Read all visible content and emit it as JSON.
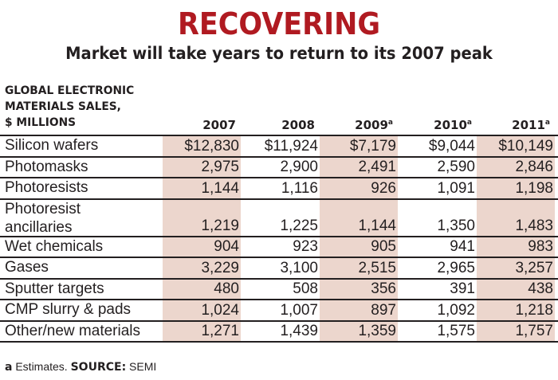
{
  "title": "RECOVERING",
  "subtitle": "Market will take years to return to its 2007 peak",
  "chart_data": {
    "type": "table",
    "row_header_label": [
      "GLOBAL ELECTRONIC",
      "MATERIALS SALES,",
      "$ MILLIONS"
    ],
    "columns": [
      {
        "year": "2007",
        "note": ""
      },
      {
        "year": "2008",
        "note": ""
      },
      {
        "year": "2009",
        "note": "a"
      },
      {
        "year": "2010",
        "note": "a"
      },
      {
        "year": "2011",
        "note": "a"
      }
    ],
    "rows": [
      {
        "label": [
          "Silicon wafers"
        ],
        "values": [
          "$12,830",
          "$11,924",
          "$7,179",
          "$9,044",
          "$10,149"
        ]
      },
      {
        "label": [
          "Photomasks"
        ],
        "values": [
          "2,975",
          "2,900",
          "2,491",
          "2,590",
          "2,846"
        ]
      },
      {
        "label": [
          "Photoresists"
        ],
        "values": [
          "1,144",
          "1,116",
          "926",
          "1,091",
          "1,198"
        ]
      },
      {
        "label": [
          "Photoresist",
          "ancillaries"
        ],
        "values": [
          "1,219",
          "1,225",
          "1,144",
          "1,350",
          "1,483"
        ]
      },
      {
        "label": [
          "Wet chemicals"
        ],
        "values": [
          "904",
          "923",
          "905",
          "941",
          "983"
        ]
      },
      {
        "label": [
          "Gases"
        ],
        "values": [
          "3,229",
          "3,100",
          "2,515",
          "2,965",
          "3,257"
        ]
      },
      {
        "label": [
          "Sputter targets"
        ],
        "values": [
          "480",
          "508",
          "356",
          "391",
          "438"
        ]
      },
      {
        "label": [
          "CMP slurry & pads"
        ],
        "values": [
          "1,024",
          "1,007",
          "897",
          "1,092",
          "1,218"
        ]
      },
      {
        "label": [
          "Other/new materials"
        ],
        "values": [
          "1,271",
          "1,439",
          "1,359",
          "1,575",
          "1,757"
        ]
      }
    ],
    "shaded_columns": [
      "2007",
      "2009",
      "2011"
    ],
    "colors": {
      "title": "#b01a21",
      "shade": "#ecd6cd",
      "text": "#231f20"
    }
  },
  "footnote": {
    "marker": "a",
    "note": " Estimates. ",
    "source_label": "SOURCE:",
    "source": " SEMI"
  }
}
